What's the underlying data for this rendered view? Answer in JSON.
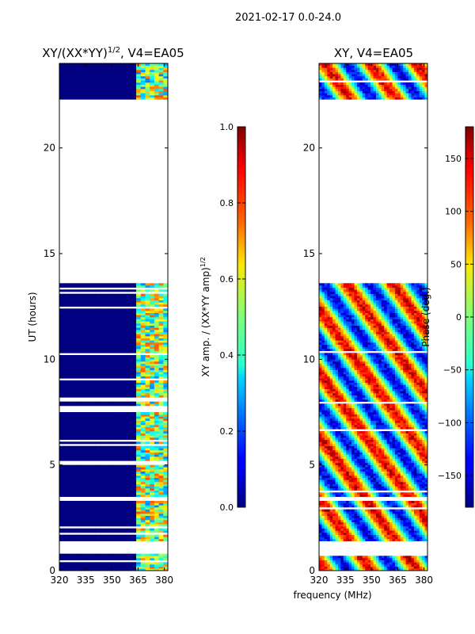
{
  "figure": {
    "suptitle": "2021-02-17 0.0-24.0",
    "xlabel": "frequency (MHz)"
  },
  "chart_data": [
    {
      "type": "heatmap",
      "title": "XY/(XX*YY)",
      "title_exponent": "1/2",
      "title_suffix": ", V4=EA05",
      "ylabel": "UT (hours)",
      "x_ticks": [
        "320",
        "335",
        "350",
        "365",
        "380"
      ],
      "x_tick_values": [
        320,
        335,
        350,
        365,
        380
      ],
      "xlim": [
        320,
        382
      ],
      "y_ticks": [
        "0",
        "5",
        "10",
        "15",
        "20"
      ],
      "y_tick_values": [
        0,
        5,
        10,
        15,
        20
      ],
      "ylim": [
        0,
        24
      ],
      "colorbar": {
        "label": "XY amp. / (XX*YY amp)",
        "label_exponent": "1/2",
        "ticks": [
          "0.0",
          "0.2",
          "0.4",
          "0.6",
          "0.8",
          "1.0"
        ],
        "tick_values": [
          0.0,
          0.2,
          0.4,
          0.6,
          0.8,
          1.0
        ],
        "range": [
          0,
          1
        ],
        "colormap": "jet"
      },
      "data_blocks_ut": [
        [
          0.0,
          0.8
        ],
        [
          1.4,
          3.3
        ],
        [
          3.5,
          13.6
        ],
        [
          22.3,
          24.0
        ]
      ],
      "bright_channel_band_mhz": [
        363,
        382
      ],
      "baseline_value": 0.0
    },
    {
      "type": "heatmap",
      "title": "XY, V4=EA05",
      "x_ticks": [
        "320",
        "335",
        "350",
        "365",
        "380"
      ],
      "x_tick_values": [
        320,
        335,
        350,
        365,
        380
      ],
      "xlim": [
        320,
        382
      ],
      "y_ticks": [
        "0",
        "5",
        "10",
        "15",
        "20"
      ],
      "y_tick_values": [
        0,
        5,
        10,
        15,
        20
      ],
      "ylim": [
        0,
        24
      ],
      "colorbar": {
        "label": "Phase (deg.)",
        "ticks": [
          "150",
          "100",
          "50",
          "0",
          "−50",
          "−100",
          "−150"
        ],
        "tick_values": [
          150,
          100,
          50,
          0,
          -50,
          -100,
          -150
        ],
        "range": [
          -180,
          180
        ],
        "colormap": "jet"
      },
      "data_blocks_ut": [
        [
          0.0,
          0.8
        ],
        [
          1.4,
          3.3
        ],
        [
          3.5,
          13.6
        ],
        [
          22.3,
          24.0
        ]
      ],
      "value_range_deg": [
        -180,
        180
      ]
    }
  ]
}
